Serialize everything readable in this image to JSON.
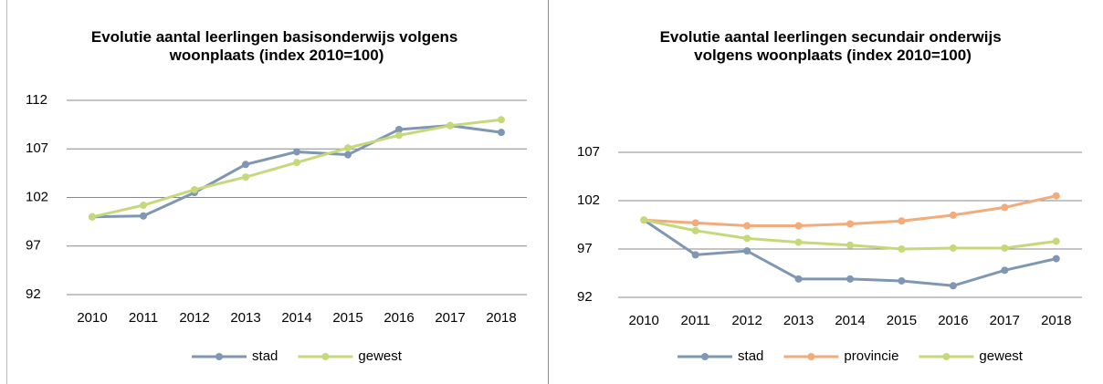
{
  "chart_data": [
    {
      "type": "line",
      "title": "Evolutie aantal leerlingen basisonderwijs volgens woonplaats (index 2010=100)",
      "categories": [
        "2010",
        "2011",
        "2012",
        "2013",
        "2014",
        "2015",
        "2016",
        "2017",
        "2018"
      ],
      "series": [
        {
          "name": "stad",
          "color": "#7f97b2",
          "values": [
            100,
            100.1,
            102.5,
            105.4,
            106.7,
            106.4,
            109.0,
            109.4,
            108.7
          ]
        },
        {
          "name": "gewest",
          "color": "#c6d97a",
          "values": [
            100,
            101.2,
            102.8,
            104.1,
            105.6,
            107.1,
            108.4,
            109.4,
            110.0
          ]
        }
      ],
      "ylim": [
        92,
        112
      ],
      "yticks": [
        92,
        97,
        102,
        107,
        112
      ],
      "grid": true,
      "legend": "bottom"
    },
    {
      "type": "line",
      "title": "Evolutie aantal leerlingen secundair onderwijs volgens woonplaats (index 2010=100)",
      "categories": [
        "2010",
        "2011",
        "2012",
        "2013",
        "2014",
        "2015",
        "2016",
        "2017",
        "2018"
      ],
      "series": [
        {
          "name": "stad",
          "color": "#7f97b2",
          "values": [
            100,
            96.4,
            96.8,
            93.9,
            93.9,
            93.7,
            93.2,
            94.8,
            96.0
          ]
        },
        {
          "name": "provincie",
          "color": "#f2ab7b",
          "values": [
            100,
            99.7,
            99.4,
            99.4,
            99.6,
            99.9,
            100.5,
            101.3,
            102.5
          ]
        },
        {
          "name": "gewest",
          "color": "#c6d97a",
          "values": [
            100,
            98.9,
            98.1,
            97.7,
            97.4,
            97.0,
            97.1,
            97.1,
            97.8
          ]
        }
      ],
      "ylim": [
        92,
        107
      ],
      "yticks": [
        92,
        97,
        102,
        107
      ],
      "grid": true,
      "legend": "bottom"
    }
  ]
}
